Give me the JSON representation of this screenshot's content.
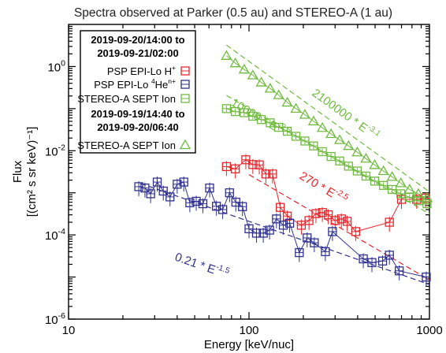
{
  "chart_data": {
    "type": "scatter",
    "title": "Spectra observed at Parker (0.5 au) and STEREO-A (1 au)",
    "xlabel": "Energy [keV/nuc]",
    "ylabel_line1": "Flux",
    "ylabel_line2": "[(cm² s sr keV)⁻¹]",
    "x_scale": "log",
    "y_scale": "log",
    "xlim": [
      10,
      1000
    ],
    "ylim": [
      1e-06,
      10
    ],
    "x_ticks": [
      {
        "value": 10,
        "label": "10"
      },
      {
        "value": 100,
        "label": "100"
      },
      {
        "value": 1000,
        "label": "1000"
      }
    ],
    "y_ticks": [
      {
        "value": 1,
        "base": "10",
        "exp": "0"
      },
      {
        "value": 0.01,
        "base": "10",
        "exp": "-2"
      },
      {
        "value": 0.0001,
        "base": "10",
        "exp": "-4"
      },
      {
        "value": 1e-06,
        "base": "10",
        "exp": "-6"
      }
    ],
    "legend": {
      "position": "top-left",
      "period1": {
        "line1": "2019-09-20/14:00 to",
        "line2": "2019-09-21/02:00"
      },
      "period2": {
        "line1": "2019-09-19/14:40 to",
        "line2": "2019-09-20/06:40"
      },
      "entries": [
        {
          "label": "PSP EPI-Lo H",
          "sup": "+",
          "series": 0
        },
        {
          "label": "PSP EPI-Lo ",
          "presup": "4",
          "label2": "He",
          "sup": "n+",
          "series": 1
        },
        {
          "label": "STEREO-A SEPT Ion",
          "sup": "",
          "series": 2
        },
        {
          "label": "STEREO-A SEPT Ion",
          "sup": "",
          "series": 3
        }
      ]
    },
    "series": [
      {
        "name": "PSP EPI-Lo H+",
        "color": "#e8262c",
        "marker": "square",
        "x": [
          75,
          84,
          96,
          105,
          114,
          124,
          135,
          149,
          163,
          195,
          215,
          235,
          255,
          275,
          300,
          325,
          350,
          390,
          600,
          700,
          850,
          950
        ],
        "y": [
          0.0042,
          0.0037,
          0.0061,
          0.0047,
          0.0046,
          0.0028,
          0.0028,
          0.00045,
          0.00028,
          0.00017,
          0.00022,
          0.00032,
          0.00034,
          0.0003,
          0.00022,
          0.00024,
          0.00021,
          0.00012,
          0.0002,
          0.0007,
          0.0007,
          0.00075
        ]
      },
      {
        "name": "PSP EPI-Lo 4He n+",
        "color": "#2e3092",
        "marker": "square",
        "x": [
          24.5,
          26.5,
          28.5,
          31,
          33.5,
          36.5,
          40,
          43.5,
          47,
          51,
          55.5,
          60.5,
          66,
          71.5,
          78,
          84.5,
          92,
          100,
          110,
          120,
          130,
          142,
          155,
          168,
          190,
          210,
          230,
          265,
          290,
          430,
          480,
          550,
          600,
          680,
          960
        ],
        "y": [
          0.0014,
          0.0013,
          0.00095,
          0.0018,
          0.0011,
          0.0008,
          0.0016,
          0.0018,
          0.00058,
          0.00063,
          0.00055,
          0.0013,
          0.00048,
          0.0004,
          0.001,
          0.0006,
          0.00047,
          0.00014,
          0.00011,
          0.00011,
          0.00013,
          0.00024,
          0.00017,
          0.00019,
          3.8e-05,
          8.5e-05,
          6.5e-05,
          4e-05,
          0.00012,
          2.7e-05,
          2.2e-05,
          2.4e-05,
          3.3e-05,
          1.4e-05,
          1e-05
        ]
      },
      {
        "name": "STEREO-A SEPT Ion (period 1)",
        "color": "#6fbb3e",
        "marker": "square",
        "x": [
          75,
          84,
          94,
          105,
          117,
          131,
          146,
          163,
          182,
          204,
          228,
          255,
          285,
          318,
          356,
          398,
          445,
          497,
          556,
          621,
          694,
          776,
          868,
          970
        ],
        "y": [
          0.1,
          0.085,
          0.08,
          0.066,
          0.055,
          0.046,
          0.036,
          0.029,
          0.022,
          0.017,
          0.013,
          0.0095,
          0.0073,
          0.0057,
          0.0043,
          0.0033,
          0.0025,
          0.0019,
          0.0015,
          0.0012,
          0.00095,
          0.00078,
          0.00065,
          0.00055
        ]
      },
      {
        "name": "STEREO-A SEPT Ion (period 2)",
        "color": "#6fbb3e",
        "marker": "triangle",
        "x": [
          75,
          84,
          94,
          105,
          117,
          131,
          146,
          163,
          182,
          204,
          228,
          255,
          285,
          318,
          356,
          398,
          445,
          497,
          556,
          621,
          694,
          776,
          868,
          970
        ],
        "y": [
          1.8,
          1.2,
          0.85,
          0.62,
          0.42,
          0.3,
          0.21,
          0.14,
          0.1,
          0.072,
          0.05,
          0.035,
          0.025,
          0.018,
          0.013,
          0.0092,
          0.0065,
          0.0046,
          0.0033,
          0.0024,
          0.0017,
          0.0012,
          0.00095,
          0.00075
        ]
      }
    ],
    "fits": [
      {
        "series": 0,
        "coef": 270,
        "index": -2.5,
        "x_range": [
          100,
          1000
        ],
        "label_coef": "270 * E",
        "label_exp": "-2.5"
      },
      {
        "series": 1,
        "coef": 0.21,
        "index": -1.5,
        "x_range": [
          25,
          1000
        ],
        "label_coef": "0.21 * E",
        "label_exp": "-1.5"
      },
      {
        "series": 2,
        "coef": 10000,
        "index": -2.5,
        "x_range": [
          75,
          1000
        ],
        "label_coef": "10000 * E",
        "label_exp": "-2.5"
      },
      {
        "series": 3,
        "coef": 2100000,
        "index": -3.1,
        "x_range": [
          75,
          1000
        ],
        "label_coef": "2100000 * E",
        "label_exp": "-3.1"
      }
    ]
  }
}
